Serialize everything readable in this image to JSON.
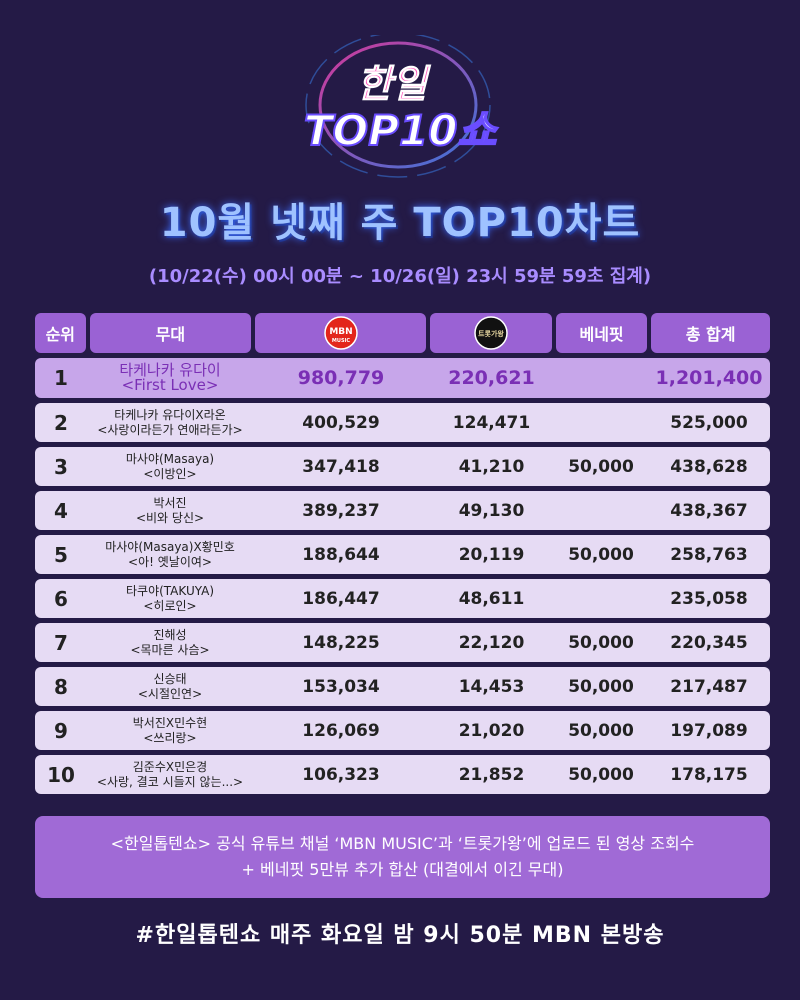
{
  "logo": {
    "line1": "한일",
    "line2": "TOP10쇼"
  },
  "headline": "10월 넷째 주 TOP10차트",
  "period": "(10/22(수) 00시 00분 ~ 10/26(일) 23시 59분 59초 집계)",
  "table": {
    "headers": {
      "rank": "순위",
      "stage": "무대",
      "mbn_logo_text": "MBN",
      "mbn_logo_sub": "MUSIC",
      "trot_logo_text": "트롯가왕",
      "benefit": "베네핏",
      "total": "총 합계"
    },
    "rows": [
      {
        "rank": "1",
        "stage1": "타케나카 유다이",
        "stage2": "<First Love>",
        "mbn": "980,779",
        "trot": "220,621",
        "benefit": "",
        "total": "1,201,400"
      },
      {
        "rank": "2",
        "stage1": "타케나카 유다이X라온",
        "stage2": "<사랑이라든가 연애라든가>",
        "mbn": "400,529",
        "trot": "124,471",
        "benefit": "",
        "total": "525,000"
      },
      {
        "rank": "3",
        "stage1": "마사야(Masaya)",
        "stage2": "<이방인>",
        "mbn": "347,418",
        "trot": "41,210",
        "benefit": "50,000",
        "total": "438,628"
      },
      {
        "rank": "4",
        "stage1": "박서진",
        "stage2": "<비와 당신>",
        "mbn": "389,237",
        "trot": "49,130",
        "benefit": "",
        "total": "438,367"
      },
      {
        "rank": "5",
        "stage1": "마사야(Masaya)X황민호",
        "stage2": "<아! 옛날이여>",
        "mbn": "188,644",
        "trot": "20,119",
        "benefit": "50,000",
        "total": "258,763"
      },
      {
        "rank": "6",
        "stage1": "타쿠야(TAKUYA)",
        "stage2": "<히로인>",
        "mbn": "186,447",
        "trot": "48,611",
        "benefit": "",
        "total": "235,058"
      },
      {
        "rank": "7",
        "stage1": "진해성",
        "stage2": "<목마른 사슴>",
        "mbn": "148,225",
        "trot": "22,120",
        "benefit": "50,000",
        "total": "220,345"
      },
      {
        "rank": "8",
        "stage1": "신승태",
        "stage2": "<시절인연>",
        "mbn": "153,034",
        "trot": "14,453",
        "benefit": "50,000",
        "total": "217,487"
      },
      {
        "rank": "9",
        "stage1": "박서진X민수현",
        "stage2": "<쓰리랑>",
        "mbn": "126,069",
        "trot": "21,020",
        "benefit": "50,000",
        "total": "197,089"
      },
      {
        "rank": "10",
        "stage1": "김준수X민은경",
        "stage2": "<사랑, 결코 시들지 않는...>",
        "mbn": "106,323",
        "trot": "21,852",
        "benefit": "50,000",
        "total": "178,175"
      }
    ]
  },
  "footnote": {
    "line1": "<한일톱텐쇼> 공식 유튜브 채널 ‘MBN MUSIC’과 ‘트롯가왕’에 업로드 된 영상 조회수",
    "line2": "+ 베네핏 5만뷰 추가 합산 (대결에서 이긴 무대)"
  },
  "broadcast": "#한일톱텐쇼 매주 화요일 밤 9시 50분 MBN 본방송",
  "colors": {
    "background": "#241a46",
    "header_cell": "#9a62d4",
    "row_bg": "#e6dbf4",
    "first_row_bg": "#c7a6ea",
    "first_row_text": "#7a2fb5",
    "headline": "#9fc2ff",
    "period": "#a98cff"
  }
}
